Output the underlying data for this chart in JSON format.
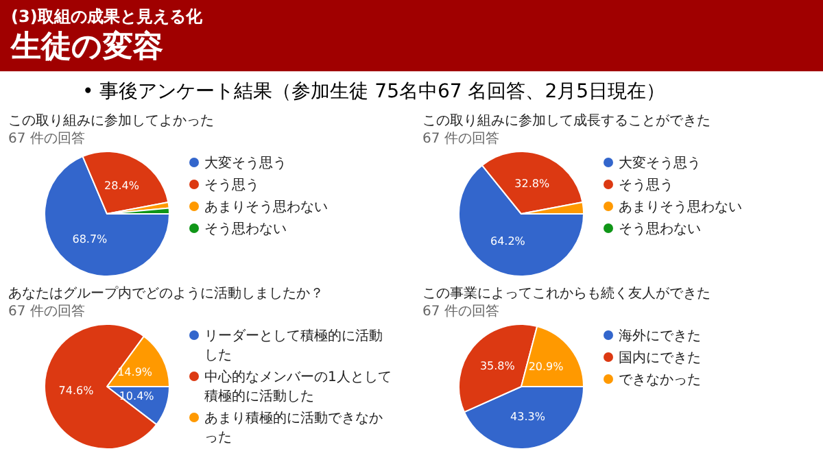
{
  "chart_data": [
    {
      "type": "other",
      "title": "生徒の変容",
      "subtitle": "(3)取組の成果と見える化",
      "annotations": [
        "• 事後アンケート結果（参加生徒 75名中67 名回答、2月5日現在）"
      ]
    },
    {
      "type": "pie",
      "title": "この取り組みに参加してよかった",
      "subtitle": "67 件の回答",
      "categories": [
        "大変そう思う",
        "そう思う",
        "あまりそう思わない",
        "そう思わない"
      ],
      "values": [
        68.7,
        28.4,
        1.5,
        1.5
      ],
      "colors": [
        "#3366cc",
        "#dc3912",
        "#ff9900",
        "#109618"
      ],
      "value_labels": [
        "68.7%",
        "28.4%",
        null,
        null
      ],
      "legend": "right"
    },
    {
      "type": "pie",
      "title": "この取り組みに参加して成長することができた",
      "subtitle": "67 件の回答",
      "categories": [
        "大変そう思う",
        "そう思う",
        "あまりそう思わない",
        "そう思わない"
      ],
      "values": [
        64.2,
        32.8,
        3.0,
        0
      ],
      "colors": [
        "#3366cc",
        "#dc3912",
        "#ff9900",
        "#109618"
      ],
      "value_labels": [
        "64.2%",
        "32.8%",
        null,
        null
      ],
      "legend": "right"
    },
    {
      "type": "pie",
      "title": "あなたはグループ内でどのように活動しましたか？",
      "subtitle": "67 件の回答",
      "categories": [
        "リーダーとして積極的に活動した",
        "中心的なメンバーの1人として積極的に活動した",
        "あまり積極的に活動できなかった"
      ],
      "values": [
        10.4,
        74.6,
        14.9
      ],
      "colors": [
        "#3366cc",
        "#dc3912",
        "#ff9900"
      ],
      "value_labels": [
        "10.4%",
        "74.6%",
        "14.9%"
      ],
      "legend": "right"
    },
    {
      "type": "pie",
      "title": "この事業によってこれからも続く友人ができた",
      "subtitle": "67 件の回答",
      "categories": [
        "海外にできた",
        "国内にできた",
        "できなかった"
      ],
      "values": [
        43.3,
        35.8,
        20.9
      ],
      "colors": [
        "#3366cc",
        "#dc3912",
        "#ff9900"
      ],
      "value_labels": [
        "43.3%",
        "35.8%",
        "20.9%"
      ],
      "legend": "right"
    }
  ]
}
